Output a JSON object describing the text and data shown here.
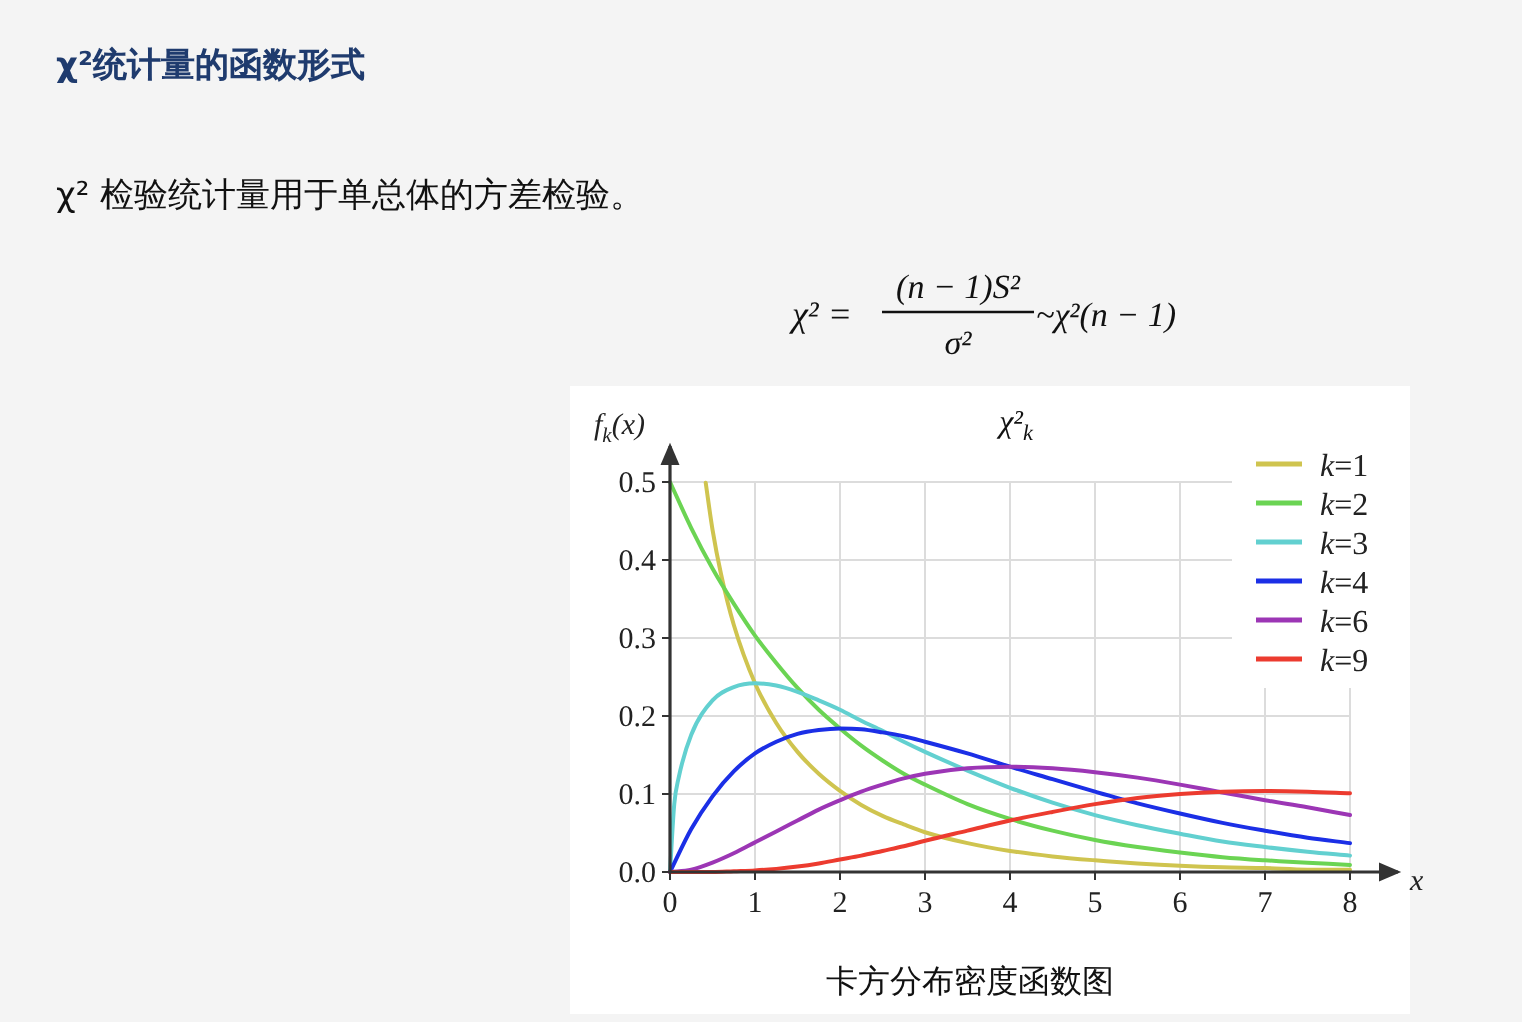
{
  "chart_data": {
    "type": "line",
    "title": "χ²统计量的函数形式",
    "subtitle": "χ² 检验统计量用于单总体的方差检验。",
    "annotations": [
      "χ² =",
      "(n − 1)S²",
      "σ²",
      "~χ²(n − 1)",
      "χ²$_{k}$",
      "卡方分布密度函数图"
    ],
    "xlabel": "x",
    "ylabel": "f$_{k}$(x)",
    "x": [
      0,
      0.25,
      0.5,
      0.75,
      1,
      1.25,
      1.5,
      1.75,
      2,
      2.25,
      2.5,
      2.75,
      3,
      3.5,
      4,
      4.5,
      5,
      5.5,
      6,
      6.5,
      7,
      7.5,
      8
    ],
    "series": [
      {
        "name": "*k*=1",
        "color": "#cfc44f",
        "x": [
          0.42,
          0.5,
          0.6,
          0.75,
          1,
          1.25,
          1.5,
          1.75,
          2,
          2.25,
          2.5,
          2.75,
          3,
          3.5,
          4,
          4.5,
          5,
          5.5,
          6,
          6.5,
          7,
          7.5,
          8
        ],
        "values": [
          0.499,
          0.439,
          0.382,
          0.317,
          0.242,
          0.191,
          0.154,
          0.126,
          0.104,
          0.086,
          0.072,
          0.061,
          0.051,
          0.037,
          0.027,
          0.02,
          0.015,
          0.011,
          0.008,
          0.006,
          0.005,
          0.003,
          0.003
        ]
      },
      {
        "name": "*k*=2",
        "color": "#6bd453",
        "values": [
          0.5,
          0.441,
          0.389,
          0.344,
          0.303,
          0.268,
          0.236,
          0.208,
          0.184,
          0.162,
          0.143,
          0.126,
          0.112,
          0.087,
          0.068,
          0.053,
          0.041,
          0.032,
          0.025,
          0.019,
          0.015,
          0.012,
          0.009
        ]
      },
      {
        "name": "*k*=3",
        "color": "#62d0d0",
        "x": [
          0,
          0.05,
          0.1,
          0.25,
          0.5,
          0.75,
          1,
          1.25,
          1.5,
          1.75,
          2,
          2.25,
          2.5,
          2.75,
          3,
          3.5,
          4,
          4.5,
          5,
          5.5,
          6,
          6.5,
          7,
          7.5,
          8
        ],
        "values": [
          0,
          0.087,
          0.12,
          0.176,
          0.22,
          0.237,
          0.242,
          0.239,
          0.231,
          0.22,
          0.208,
          0.194,
          0.181,
          0.167,
          0.154,
          0.13,
          0.108,
          0.089,
          0.073,
          0.06,
          0.049,
          0.039,
          0.032,
          0.026,
          0.021
        ]
      },
      {
        "name": "*k*=4",
        "color": "#1b2fe6",
        "values": [
          0,
          0.055,
          0.097,
          0.129,
          0.152,
          0.167,
          0.177,
          0.182,
          0.184,
          0.183,
          0.179,
          0.174,
          0.167,
          0.152,
          0.135,
          0.119,
          0.103,
          0.088,
          0.075,
          0.063,
          0.053,
          0.044,
          0.037
        ]
      },
      {
        "name": "*k*=6",
        "color": "#9c36b5",
        "values": [
          0,
          0.003,
          0.012,
          0.024,
          0.038,
          0.052,
          0.066,
          0.08,
          0.092,
          0.103,
          0.112,
          0.12,
          0.126,
          0.133,
          0.135,
          0.133,
          0.128,
          0.121,
          0.112,
          0.102,
          0.092,
          0.083,
          0.073
        ]
      },
      {
        "name": "*k*=9",
        "color": "#ec3b2f",
        "values": [
          0,
          0,
          0,
          0.001,
          0.002,
          0.004,
          0.007,
          0.011,
          0.016,
          0.021,
          0.027,
          0.033,
          0.04,
          0.053,
          0.066,
          0.077,
          0.087,
          0.095,
          0.1,
          0.103,
          0.104,
          0.103,
          0.101
        ]
      }
    ],
    "xlim": [
      0,
      8
    ],
    "ylim": [
      0,
      0.5
    ],
    "xticks": [
      0,
      1,
      2,
      3,
      4,
      5,
      6,
      7,
      8
    ],
    "yticks": [
      {
        "value": 0,
        "label": "0.0"
      },
      0.1,
      0.2,
      0.3,
      0.4,
      0.5
    ],
    "grid": true,
    "legend": "top right"
  }
}
